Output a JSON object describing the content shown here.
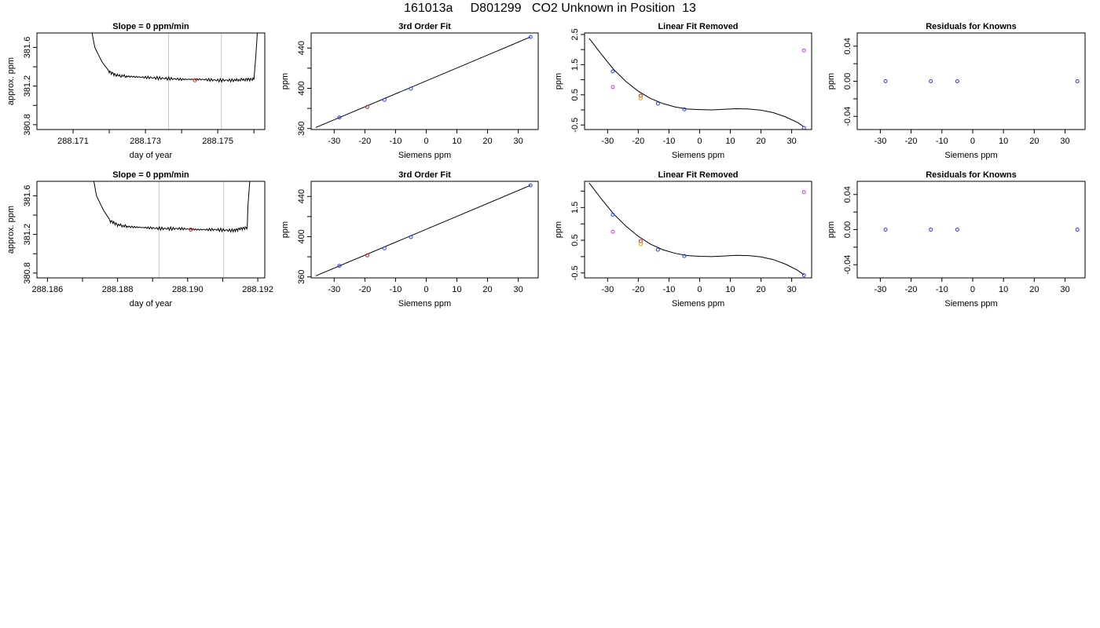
{
  "page": {
    "title": "161013a     D801299   CO2 Unknown in Position  13"
  },
  "chart_data": [
    {
      "type": "line",
      "title": "Slope =  0  ppm/min",
      "xlabel": "day of year",
      "ylabel": "approx. ppm",
      "xlim": [
        288.17,
        288.1763
      ],
      "ylim": [
        380.75,
        381.75
      ],
      "xticks": [
        288.171,
        288.172,
        288.173,
        288.174,
        288.175,
        288.176
      ],
      "xtick_labels": [
        "288.171",
        "",
        "288.173",
        "",
        "288.175",
        ""
      ],
      "yticks": [
        380.8,
        381.0,
        381.2,
        381.4,
        381.6
      ],
      "ytick_labels": [
        "380.8",
        "",
        "381.2",
        "",
        "381.6"
      ],
      "vlines": [
        288.17364,
        288.1751
      ],
      "vline_color": "#c8c8c8",
      "series": [
        {
          "color": "#000000",
          "x": [
            288.17145,
            288.1716,
            288.1718,
            288.172,
            288.1722,
            288.1725,
            288.173,
            288.1735,
            288.174,
            288.1745,
            288.175,
            288.1755,
            288.1758,
            288.176,
            288.17605,
            288.17612
          ],
          "y": [
            381.9,
            381.6,
            381.45,
            381.35,
            381.31,
            381.3,
            381.29,
            381.28,
            381.27,
            381.27,
            381.26,
            381.26,
            381.27,
            381.27,
            381.5,
            381.9
          ]
        }
      ],
      "points": [
        {
          "x": 288.17437,
          "y": 381.26,
          "color": "#e41a1c"
        }
      ]
    },
    {
      "type": "scatter",
      "title": "3rd Order Fit",
      "xlabel": "Siemens ppm",
      "ylabel": "ppm",
      "xlim": [
        -37.5,
        36.5
      ],
      "ylim": [
        359,
        455
      ],
      "xticks": [
        -30,
        -20,
        -10,
        0,
        10,
        20,
        30
      ],
      "xtick_labels": [
        "-30",
        "-20",
        "-10",
        "0",
        "10",
        "20",
        "30"
      ],
      "yticks": [
        360,
        380,
        400,
        420,
        440
      ],
      "ytick_labels": [
        "360",
        "",
        "400",
        "",
        "440"
      ],
      "fit_line": {
        "x": [
          -36,
          34
        ],
        "y": [
          361,
          451
        ],
        "color": "#000000"
      },
      "points": [
        {
          "x": -28.3,
          "y": 371.0,
          "color": "#1f3fff"
        },
        {
          "x": -19.2,
          "y": 381.4,
          "color": "#e41a1c"
        },
        {
          "x": -13.6,
          "y": 388.5,
          "color": "#1f3fff"
        },
        {
          "x": -5.0,
          "y": 399.6,
          "color": "#1f3fff"
        },
        {
          "x": 34.0,
          "y": 451.0,
          "color": "#1f3fff"
        }
      ]
    },
    {
      "type": "scatter",
      "title": "Linear Fit Removed",
      "xlabel": "Siemens ppm",
      "ylabel": "ppm",
      "xlim": [
        -37.5,
        36.5
      ],
      "ylim": [
        -0.65,
        2.55
      ],
      "xticks": [
        -30,
        -20,
        -10,
        0,
        10,
        20,
        30
      ],
      "xtick_labels": [
        "-30",
        "-20",
        "-10",
        "0",
        "10",
        "20",
        "30"
      ],
      "yticks": [
        -0.5,
        0.0,
        0.5,
        1.0,
        1.5,
        2.0,
        2.5
      ],
      "ytick_labels": [
        "-0.5",
        "",
        "0.5",
        "",
        "1.5",
        "",
        "2.5"
      ],
      "fit_curve": {
        "color": "#000000",
        "x": [
          -36,
          -32,
          -28,
          -24,
          -20,
          -16,
          -12,
          -8,
          -4,
          0,
          4,
          8,
          12,
          16,
          20,
          24,
          28,
          32,
          34
        ],
        "y": [
          2.37,
          1.84,
          1.34,
          0.94,
          0.62,
          0.38,
          0.21,
          0.1,
          0.03,
          0.01,
          0.0,
          0.02,
          0.04,
          0.03,
          -0.01,
          -0.09,
          -0.23,
          -0.42,
          -0.56
        ]
      },
      "points": [
        {
          "x": -28.3,
          "y": 1.28,
          "color": "#1f3fff"
        },
        {
          "x": -28.3,
          "y": 0.76,
          "color": "#cc33ff"
        },
        {
          "x": -19.2,
          "y": 0.47,
          "color": "#e41a1c"
        },
        {
          "x": -19.2,
          "y": 0.38,
          "color": "#ff9900"
        },
        {
          "x": -13.6,
          "y": 0.21,
          "color": "#1f3fff"
        },
        {
          "x": -5.0,
          "y": 0.02,
          "color": "#1f3fff"
        },
        {
          "x": 34.0,
          "y": 1.97,
          "color": "#cc33ff"
        },
        {
          "x": 34.0,
          "y": -0.6,
          "color": "#1f3fff"
        }
      ]
    },
    {
      "type": "scatter",
      "title": "Residuals for Knowns",
      "xlabel": "Siemens ppm",
      "ylabel": "ppm",
      "xlim": [
        -37.5,
        36.5
      ],
      "ylim": [
        -0.055,
        0.055
      ],
      "xticks": [
        -30,
        -20,
        -10,
        0,
        10,
        20,
        30
      ],
      "xtick_labels": [
        "-30",
        "-20",
        "-10",
        "0",
        "10",
        "20",
        "30"
      ],
      "yticks": [
        -0.04,
        -0.02,
        0.0,
        0.02,
        0.04
      ],
      "ytick_labels": [
        "-0.04",
        "",
        "0.00",
        "",
        "0.04"
      ],
      "points": [
        {
          "x": -28.3,
          "y": 0.0,
          "color": "#5522ee"
        },
        {
          "x": -13.6,
          "y": 0.0,
          "color": "#5522ee"
        },
        {
          "x": -5.0,
          "y": 0.0,
          "color": "#5522ee"
        },
        {
          "x": 34.0,
          "y": 0.0,
          "color": "#5522ee"
        }
      ]
    },
    {
      "type": "line",
      "title": "Slope =  0  ppm/min",
      "xlabel": "day of year",
      "ylabel": "approx. ppm",
      "xlim": [
        288.1857,
        288.1922
      ],
      "ylim": [
        380.75,
        381.75
      ],
      "xticks": [
        288.186,
        288.187,
        288.188,
        288.189,
        288.19,
        288.191,
        288.192
      ],
      "xtick_labels": [
        "288.186",
        "",
        "288.188",
        "",
        "288.190",
        "",
        "288.192"
      ],
      "yticks": [
        380.8,
        381.0,
        381.2,
        381.4,
        381.6
      ],
      "ytick_labels": [
        "380.8",
        "",
        "381.2",
        "",
        "381.6"
      ],
      "vlines": [
        288.18918,
        288.19103
      ],
      "vline_color": "#c8c8c8",
      "series": [
        {
          "color": "#000000",
          "x": [
            288.18725,
            288.1874,
            288.1876,
            288.1878,
            288.188,
            288.1883,
            288.1888,
            288.1893,
            288.1898,
            288.1903,
            288.1908,
            288.1913,
            288.1915,
            288.1917,
            288.19172,
            288.1918
          ],
          "y": [
            381.9,
            381.6,
            381.45,
            381.34,
            381.3,
            381.28,
            381.27,
            381.26,
            381.26,
            381.25,
            381.25,
            381.24,
            381.26,
            381.27,
            381.5,
            381.9
          ]
        }
      ],
      "points": [
        {
          "x": 288.19009,
          "y": 381.25,
          "color": "#e41a1c"
        }
      ]
    },
    {
      "type": "scatter",
      "title": "3rd Order Fit",
      "xlabel": "Siemens ppm",
      "ylabel": "ppm",
      "xlim": [
        -37.5,
        36.5
      ],
      "ylim": [
        359,
        455
      ],
      "xticks": [
        -30,
        -20,
        -10,
        0,
        10,
        20,
        30
      ],
      "xtick_labels": [
        "-30",
        "-20",
        "-10",
        "0",
        "10",
        "20",
        "30"
      ],
      "yticks": [
        360,
        380,
        400,
        420,
        440
      ],
      "ytick_labels": [
        "360",
        "",
        "400",
        "",
        "440"
      ],
      "fit_line": {
        "x": [
          -36,
          34
        ],
        "y": [
          361,
          451
        ],
        "color": "#000000"
      },
      "points": [
        {
          "x": -28.3,
          "y": 371.0,
          "color": "#1f3fff"
        },
        {
          "x": -19.2,
          "y": 381.4,
          "color": "#e41a1c"
        },
        {
          "x": -13.6,
          "y": 388.5,
          "color": "#1f3fff"
        },
        {
          "x": -5.0,
          "y": 399.6,
          "color": "#1f3fff"
        },
        {
          "x": 34.0,
          "y": 451.0,
          "color": "#1f3fff"
        }
      ]
    },
    {
      "type": "scatter",
      "title": "Linear Fit Removed",
      "xlabel": "Siemens ppm",
      "ylabel": "ppm",
      "xlim": [
        -37.5,
        36.5
      ],
      "ylim": [
        -0.65,
        2.3
      ],
      "xticks": [
        -30,
        -20,
        -10,
        0,
        10,
        20,
        30
      ],
      "xtick_labels": [
        "-30",
        "-20",
        "-10",
        "0",
        "10",
        "20",
        "30"
      ],
      "yticks": [
        -0.5,
        0.0,
        0.5,
        1.0,
        1.5,
        2.0
      ],
      "ytick_labels": [
        "-0.5",
        "",
        "0.5",
        "",
        "1.5",
        ""
      ],
      "fit_curve": {
        "color": "#000000",
        "x": [
          -36,
          -32,
          -28,
          -24,
          -20,
          -16,
          -12,
          -8,
          -4,
          0,
          4,
          8,
          12,
          16,
          20,
          24,
          28,
          32,
          34
        ],
        "y": [
          2.25,
          1.76,
          1.3,
          0.93,
          0.62,
          0.38,
          0.21,
          0.1,
          0.03,
          0.01,
          0.0,
          0.02,
          0.04,
          0.03,
          -0.01,
          -0.09,
          -0.23,
          -0.42,
          -0.56
        ]
      },
      "points": [
        {
          "x": -28.3,
          "y": 1.28,
          "color": "#1f3fff"
        },
        {
          "x": -28.3,
          "y": 0.76,
          "color": "#cc33ff"
        },
        {
          "x": -19.2,
          "y": 0.47,
          "color": "#e41a1c"
        },
        {
          "x": -19.2,
          "y": 0.38,
          "color": "#ff9900"
        },
        {
          "x": -13.6,
          "y": 0.21,
          "color": "#1f3fff"
        },
        {
          "x": -5.0,
          "y": 0.02,
          "color": "#1f3fff"
        },
        {
          "x": 34.0,
          "y": 1.97,
          "color": "#cc33ff"
        },
        {
          "x": 34.0,
          "y": -0.57,
          "color": "#1f3fff"
        }
      ]
    },
    {
      "type": "scatter",
      "title": "Residuals for Knowns",
      "xlabel": "Siemens ppm",
      "ylabel": "ppm",
      "xlim": [
        -37.5,
        36.5
      ],
      "ylim": [
        -0.055,
        0.055
      ],
      "xticks": [
        -30,
        -20,
        -10,
        0,
        10,
        20,
        30
      ],
      "xtick_labels": [
        "-30",
        "-20",
        "-10",
        "0",
        "10",
        "20",
        "30"
      ],
      "yticks": [
        -0.04,
        -0.02,
        0.0,
        0.02,
        0.04
      ],
      "ytick_labels": [
        "-0.04",
        "",
        "0.00",
        "",
        "0.04"
      ],
      "points": [
        {
          "x": -28.3,
          "y": 0.0,
          "color": "#5522ee"
        },
        {
          "x": -13.6,
          "y": 0.0,
          "color": "#5522ee"
        },
        {
          "x": -5.0,
          "y": 0.0,
          "color": "#5522ee"
        },
        {
          "x": 34.0,
          "y": 0.0,
          "color": "#5522ee"
        }
      ]
    }
  ]
}
